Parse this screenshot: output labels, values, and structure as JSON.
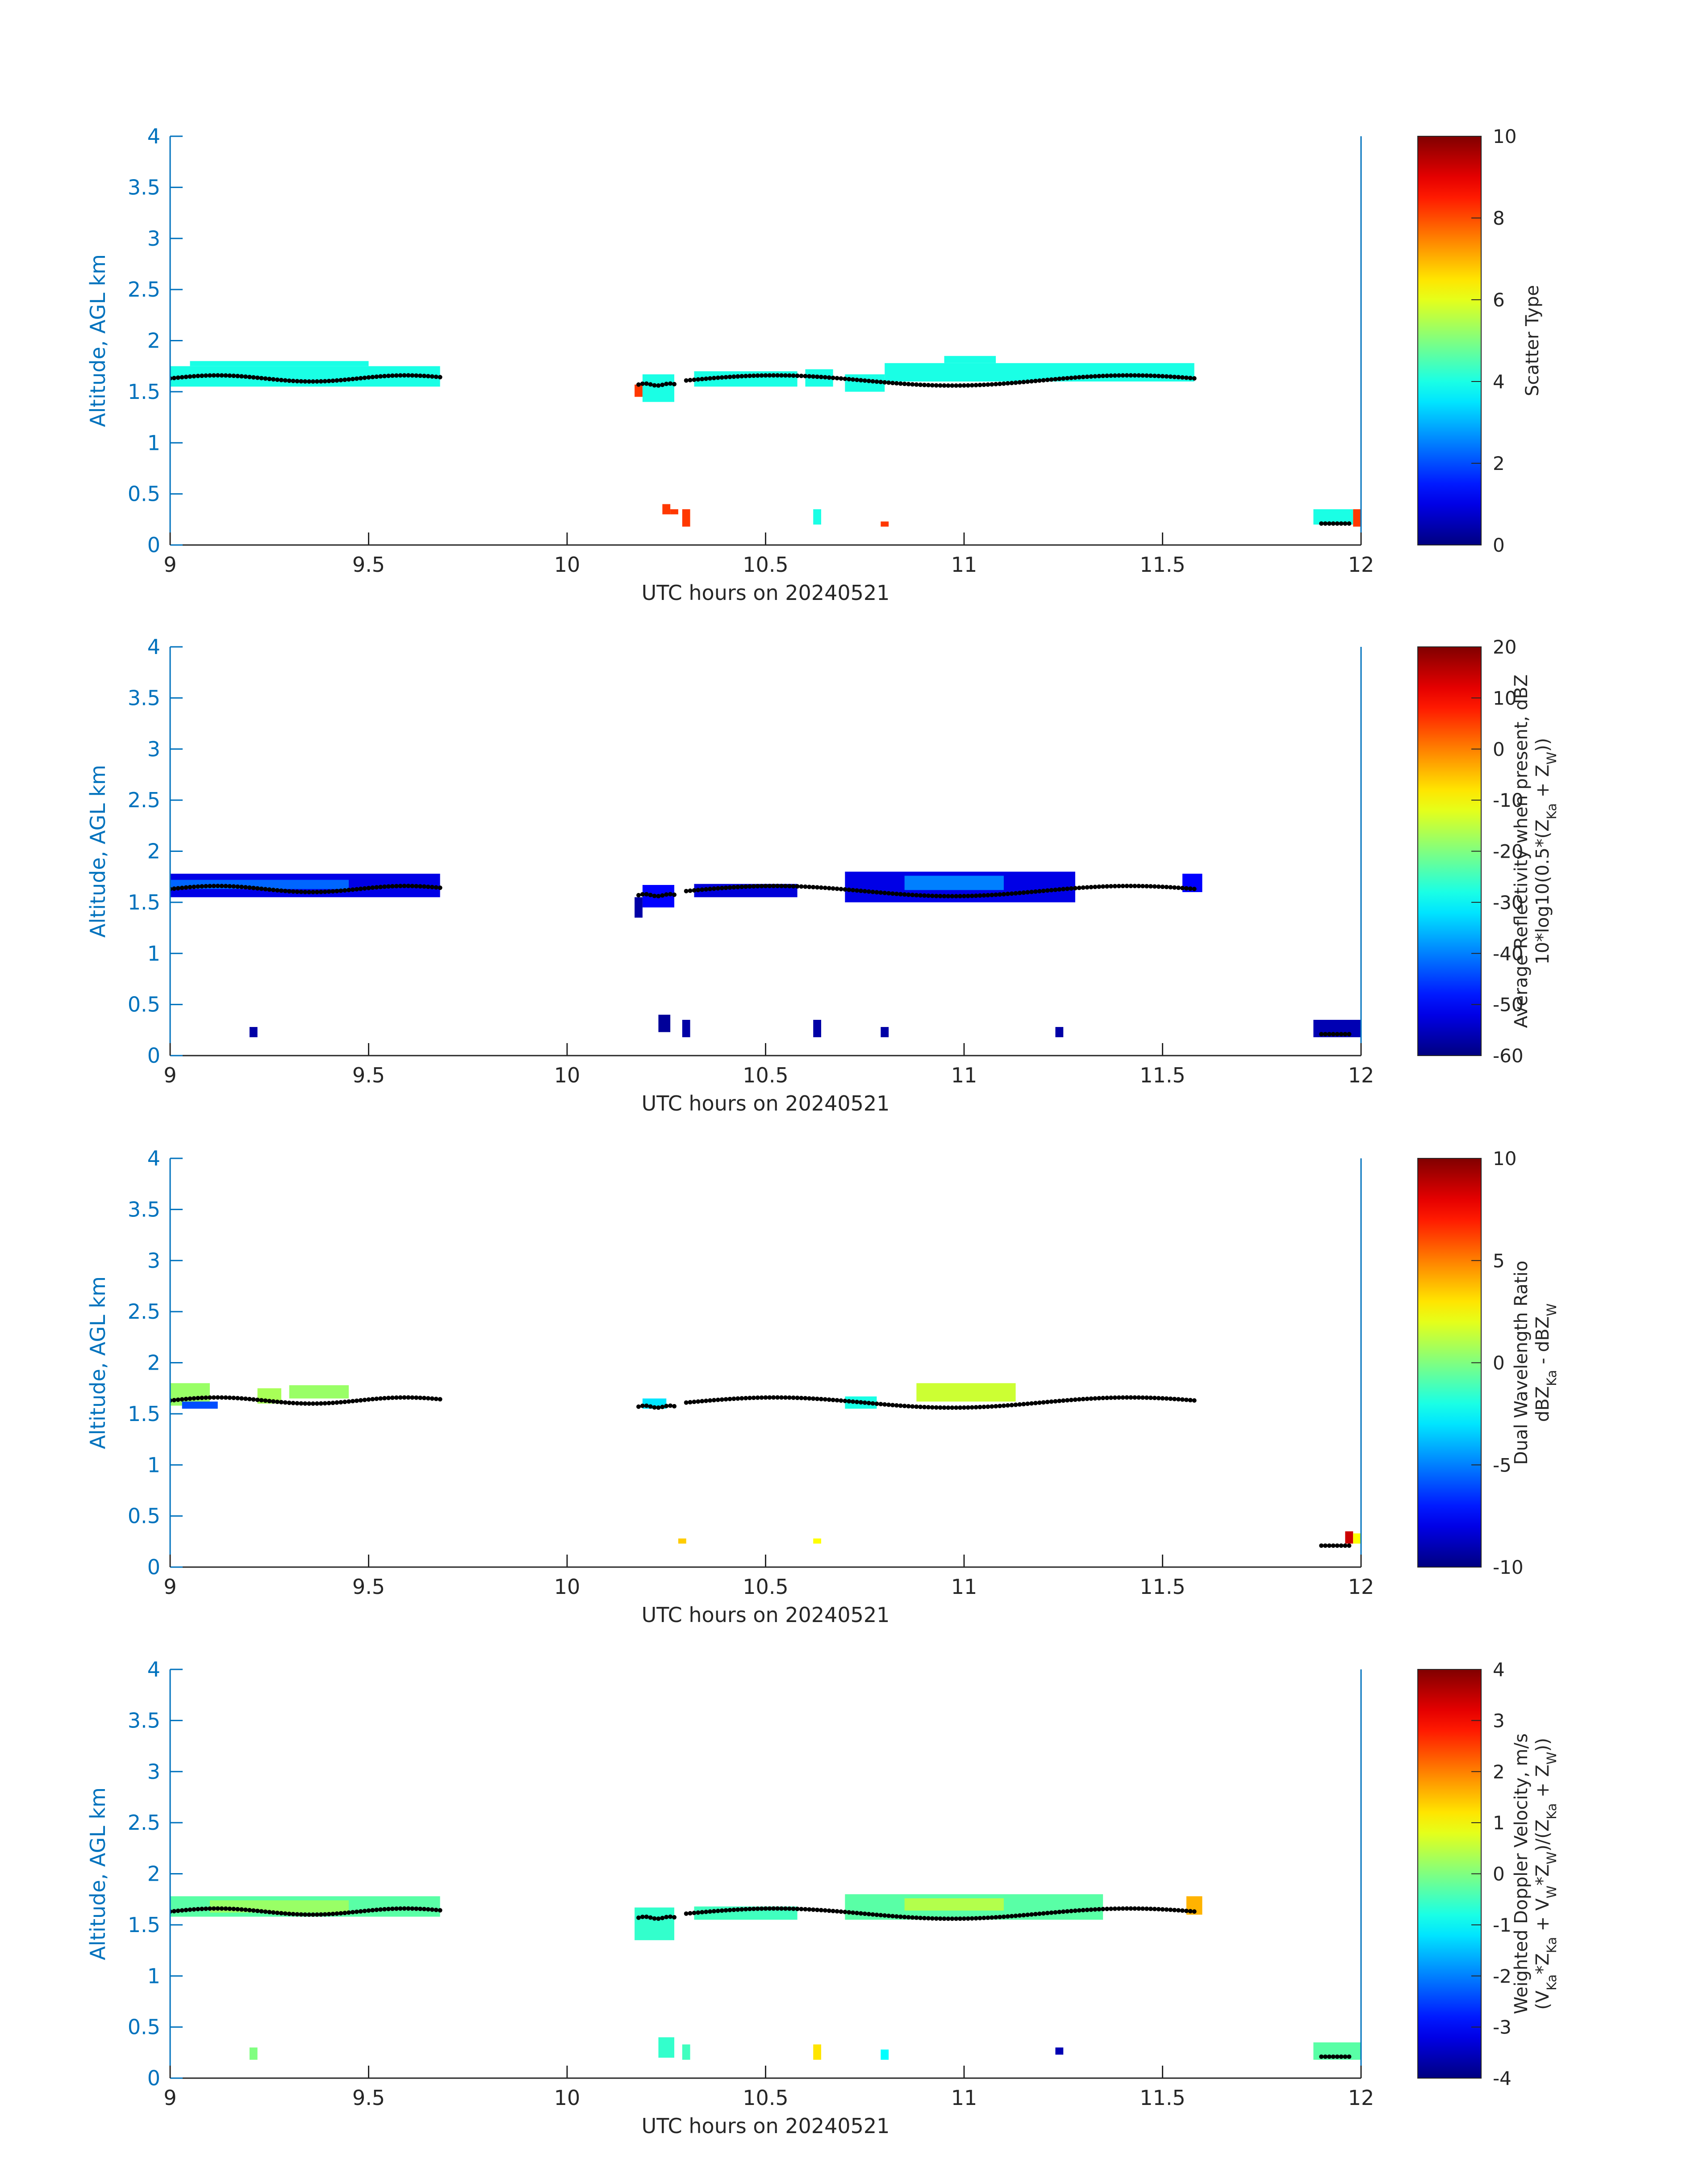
{
  "figure": {
    "panels": [
      {
        "id": "scatter-type",
        "colorbar": {
          "min": 0,
          "max": 10,
          "ticks": [
            0,
            2,
            4,
            6,
            8,
            10
          ],
          "label_lines": [
            "Scatter Type"
          ]
        }
      },
      {
        "id": "reflectivity",
        "colorbar": {
          "min": -60,
          "max": 20,
          "ticks": [
            -60,
            -50,
            -40,
            -30,
            -20,
            -10,
            0,
            10,
            20
          ],
          "label_lines": [
            "Average Reflectivity when present, dBZ",
            "10*log10(0.5*(Z_Ka + Z_W))"
          ]
        }
      },
      {
        "id": "dual-wavelength-ratio",
        "colorbar": {
          "min": -10,
          "max": 10,
          "ticks": [
            -10,
            -5,
            0,
            5,
            10
          ],
          "label_lines": [
            "Dual Wavelength Ratio",
            "dBZ_Ka - dBZ_W"
          ]
        }
      },
      {
        "id": "doppler-velocity",
        "colorbar": {
          "min": -4,
          "max": 4,
          "ticks": [
            -4,
            -3,
            -2,
            -1,
            0,
            1,
            2,
            3,
            4
          ],
          "label_lines": [
            "Weighted Doppler Velocity, m/s",
            "(V_Ka*Z_Ka + V_W*Z_W)/(Z_Ka + Z_W))"
          ]
        }
      }
    ]
  },
  "chart_data": [
    {
      "type": "heatmap",
      "title": "",
      "xlabel": "UTC hours on 20240521",
      "ylabel": "Altitude, AGL km",
      "xlim": [
        9,
        12
      ],
      "ylim": [
        0,
        4
      ],
      "xticks": [
        9,
        9.5,
        10,
        10.5,
        11,
        11.5,
        12
      ],
      "yticks": [
        0,
        0.5,
        1,
        1.5,
        2,
        2.5,
        3,
        3.5,
        4
      ],
      "colormap": "jet",
      "clim": [
        0,
        10
      ],
      "colorbar_label": "Scatter Type",
      "cells": [
        {
          "x0": 9.0,
          "x1": 9.68,
          "y0": 1.55,
          "y1": 1.75,
          "v": 4
        },
        {
          "x0": 9.05,
          "x1": 9.5,
          "y0": 1.75,
          "y1": 1.8,
          "v": 4
        },
        {
          "x0": 10.17,
          "x1": 10.19,
          "y0": 1.45,
          "y1": 1.57,
          "v": 8.2
        },
        {
          "x0": 10.19,
          "x1": 10.27,
          "y0": 1.4,
          "y1": 1.67,
          "v": 4
        },
        {
          "x0": 10.32,
          "x1": 10.58,
          "y0": 1.55,
          "y1": 1.7,
          "v": 4
        },
        {
          "x0": 10.6,
          "x1": 10.67,
          "y0": 1.55,
          "y1": 1.72,
          "v": 4
        },
        {
          "x0": 10.7,
          "x1": 10.8,
          "y0": 1.5,
          "y1": 1.67,
          "v": 4
        },
        {
          "x0": 10.8,
          "x1": 11.58,
          "y0": 1.6,
          "y1": 1.78,
          "v": 4
        },
        {
          "x0": 10.95,
          "x1": 11.08,
          "y0": 1.78,
          "y1": 1.85,
          "v": 4
        },
        {
          "x0": 10.24,
          "x1": 10.26,
          "y0": 0.3,
          "y1": 0.4,
          "v": 8.2
        },
        {
          "x0": 10.26,
          "x1": 10.28,
          "y0": 0.3,
          "y1": 0.35,
          "v": 8.2
        },
        {
          "x0": 10.29,
          "x1": 10.31,
          "y0": 0.18,
          "y1": 0.35,
          "v": 8.2
        },
        {
          "x0": 10.62,
          "x1": 10.64,
          "y0": 0.2,
          "y1": 0.35,
          "v": 4
        },
        {
          "x0": 10.79,
          "x1": 10.81,
          "y0": 0.18,
          "y1": 0.23,
          "v": 8.2
        },
        {
          "x0": 11.88,
          "x1": 11.98,
          "y0": 0.2,
          "y1": 0.35,
          "v": 4
        },
        {
          "x0": 11.98,
          "x1": 12.0,
          "y0": 0.18,
          "y1": 0.35,
          "v": 8.2
        }
      ],
      "cloud_base": [
        {
          "x0": 9.0,
          "x1": 9.68,
          "y0": 1.6,
          "y1": 1.66
        },
        {
          "x0": 10.18,
          "x1": 10.27,
          "y0": 1.56,
          "y1": 1.58
        },
        {
          "x0": 10.3,
          "x1": 11.58,
          "y0": 1.56,
          "y1": 1.66
        },
        {
          "x0": 11.9,
          "x1": 11.97,
          "y0": 0.21,
          "y1": 0.21
        }
      ]
    },
    {
      "type": "heatmap",
      "title": "",
      "xlabel": "UTC hours on 20240521",
      "ylabel": "Altitude, AGL km",
      "xlim": [
        9,
        12
      ],
      "ylim": [
        0,
        4
      ],
      "xticks": [
        9,
        9.5,
        10,
        10.5,
        11,
        11.5,
        12
      ],
      "yticks": [
        0,
        0.5,
        1,
        1.5,
        2,
        2.5,
        3,
        3.5,
        4
      ],
      "colormap": "jet",
      "clim": [
        -60,
        20
      ],
      "colorbar_label": "Average Reflectivity when present, dBZ 10*log10(0.5*(Z_Ka + Z_W))",
      "cells": [
        {
          "x0": 9.0,
          "x1": 9.68,
          "y0": 1.55,
          "y1": 1.78,
          "v": -52
        },
        {
          "x0": 9.0,
          "x1": 9.45,
          "y0": 1.63,
          "y1": 1.72,
          "v": -42
        },
        {
          "x0": 10.17,
          "x1": 10.19,
          "y0": 1.35,
          "y1": 1.55,
          "v": -57
        },
        {
          "x0": 10.19,
          "x1": 10.27,
          "y0": 1.45,
          "y1": 1.67,
          "v": -50
        },
        {
          "x0": 10.32,
          "x1": 10.58,
          "y0": 1.55,
          "y1": 1.68,
          "v": -53
        },
        {
          "x0": 10.7,
          "x1": 11.28,
          "y0": 1.5,
          "y1": 1.8,
          "v": -52
        },
        {
          "x0": 10.85,
          "x1": 11.1,
          "y0": 1.62,
          "y1": 1.76,
          "v": -40
        },
        {
          "x0": 11.55,
          "x1": 11.6,
          "y0": 1.6,
          "y1": 1.78,
          "v": -50
        },
        {
          "x0": 9.2,
          "x1": 9.22,
          "y0": 0.18,
          "y1": 0.28,
          "v": -57
        },
        {
          "x0": 10.23,
          "x1": 10.26,
          "y0": 0.23,
          "y1": 0.4,
          "v": -58
        },
        {
          "x0": 10.29,
          "x1": 10.31,
          "y0": 0.18,
          "y1": 0.35,
          "v": -57
        },
        {
          "x0": 10.62,
          "x1": 10.64,
          "y0": 0.18,
          "y1": 0.35,
          "v": -57
        },
        {
          "x0": 10.79,
          "x1": 10.81,
          "y0": 0.18,
          "y1": 0.28,
          "v": -57
        },
        {
          "x0": 11.23,
          "x1": 11.25,
          "y0": 0.18,
          "y1": 0.28,
          "v": -57
        },
        {
          "x0": 11.88,
          "x1": 12.0,
          "y0": 0.18,
          "y1": 0.35,
          "v": -56
        }
      ],
      "cloud_base": [
        {
          "x0": 9.0,
          "x1": 9.68,
          "y0": 1.6,
          "y1": 1.66
        },
        {
          "x0": 10.18,
          "x1": 10.27,
          "y0": 1.56,
          "y1": 1.58
        },
        {
          "x0": 10.3,
          "x1": 11.58,
          "y0": 1.56,
          "y1": 1.66
        },
        {
          "x0": 11.9,
          "x1": 11.97,
          "y0": 0.21,
          "y1": 0.21
        }
      ]
    },
    {
      "type": "heatmap",
      "title": "",
      "xlabel": "UTC hours on 20240521",
      "ylabel": "Altitude, AGL km",
      "xlim": [
        9,
        12
      ],
      "ylim": [
        0,
        4
      ],
      "xticks": [
        9,
        9.5,
        10,
        10.5,
        11,
        11.5,
        12
      ],
      "yticks": [
        0,
        0.5,
        1,
        1.5,
        2,
        2.5,
        3,
        3.5,
        4
      ],
      "colormap": "jet",
      "clim": [
        -10,
        10
      ],
      "colorbar_label": "Dual Wavelength Ratio dBZ_Ka - dBZ_W",
      "cells": [
        {
          "x0": 9.0,
          "x1": 9.1,
          "y0": 1.58,
          "y1": 1.8,
          "v": 0.5
        },
        {
          "x0": 9.03,
          "x1": 9.12,
          "y0": 1.55,
          "y1": 1.62,
          "v": -6
        },
        {
          "x0": 9.22,
          "x1": 9.28,
          "y0": 1.6,
          "y1": 1.75,
          "v": 0.8
        },
        {
          "x0": 9.3,
          "x1": 9.45,
          "y0": 1.65,
          "y1": 1.78,
          "v": 0.5
        },
        {
          "x0": 10.19,
          "x1": 10.25,
          "y0": 1.55,
          "y1": 1.65,
          "v": -3
        },
        {
          "x0": 10.7,
          "x1": 10.78,
          "y0": 1.55,
          "y1": 1.67,
          "v": -2
        },
        {
          "x0": 10.88,
          "x1": 11.13,
          "y0": 1.62,
          "y1": 1.8,
          "v": 1.5
        },
        {
          "x0": 10.28,
          "x1": 10.3,
          "y0": 0.23,
          "y1": 0.28,
          "v": 3.5
        },
        {
          "x0": 10.62,
          "x1": 10.64,
          "y0": 0.23,
          "y1": 0.28,
          "v": 2.5
        },
        {
          "x0": 11.96,
          "x1": 11.98,
          "y0": 0.23,
          "y1": 0.35,
          "v": 8.5
        },
        {
          "x0": 11.98,
          "x1": 12.0,
          "y0": 0.23,
          "y1": 0.33,
          "v": 2.5
        }
      ],
      "cloud_base": [
        {
          "x0": 9.0,
          "x1": 9.68,
          "y0": 1.6,
          "y1": 1.66
        },
        {
          "x0": 10.18,
          "x1": 10.27,
          "y0": 1.56,
          "y1": 1.58
        },
        {
          "x0": 10.3,
          "x1": 11.58,
          "y0": 1.56,
          "y1": 1.66
        },
        {
          "x0": 11.9,
          "x1": 11.97,
          "y0": 0.21,
          "y1": 0.21
        }
      ]
    },
    {
      "type": "heatmap",
      "title": "",
      "xlabel": "UTC hours on 20240521",
      "ylabel": "Altitude, AGL km",
      "xlim": [
        9,
        12
      ],
      "ylim": [
        0,
        4
      ],
      "xticks": [
        9,
        9.5,
        10,
        10.5,
        11,
        11.5,
        12
      ],
      "yticks": [
        0,
        0.5,
        1,
        1.5,
        2,
        2.5,
        3,
        3.5,
        4
      ],
      "colormap": "jet",
      "clim": [
        -4,
        4
      ],
      "colorbar_label": "Weighted Doppler Velocity, m/s (V_Ka*Z_Ka + V_W*Z_W)/(Z_Ka + Z_W))",
      "cells": [
        {
          "x0": 9.0,
          "x1": 9.68,
          "y0": 1.58,
          "y1": 1.78,
          "v": -0.3
        },
        {
          "x0": 9.1,
          "x1": 9.45,
          "y0": 1.62,
          "y1": 1.74,
          "v": 0.2
        },
        {
          "x0": 10.17,
          "x1": 10.27,
          "y0": 1.35,
          "y1": 1.67,
          "v": -0.6
        },
        {
          "x0": 10.32,
          "x1": 10.58,
          "y0": 1.55,
          "y1": 1.68,
          "v": -0.5
        },
        {
          "x0": 10.7,
          "x1": 11.35,
          "y0": 1.55,
          "y1": 1.8,
          "v": -0.3
        },
        {
          "x0": 10.85,
          "x1": 11.1,
          "y0": 1.64,
          "y1": 1.76,
          "v": 0.4
        },
        {
          "x0": 11.56,
          "x1": 11.6,
          "y0": 1.6,
          "y1": 1.78,
          "v": 1.6
        },
        {
          "x0": 9.2,
          "x1": 9.22,
          "y0": 0.18,
          "y1": 0.3,
          "v": 0
        },
        {
          "x0": 10.23,
          "x1": 10.27,
          "y0": 0.2,
          "y1": 0.4,
          "v": -0.6
        },
        {
          "x0": 10.29,
          "x1": 10.31,
          "y0": 0.18,
          "y1": 0.33,
          "v": -0.5
        },
        {
          "x0": 10.62,
          "x1": 10.64,
          "y0": 0.18,
          "y1": 0.33,
          "v": 1.2
        },
        {
          "x0": 10.79,
          "x1": 10.81,
          "y0": 0.18,
          "y1": 0.28,
          "v": -1
        },
        {
          "x0": 11.23,
          "x1": 11.25,
          "y0": 0.23,
          "y1": 0.3,
          "v": -3.6
        },
        {
          "x0": 11.88,
          "x1": 12.0,
          "y0": 0.18,
          "y1": 0.35,
          "v": -0.3
        }
      ],
      "cloud_base": [
        {
          "x0": 9.0,
          "x1": 9.68,
          "y0": 1.6,
          "y1": 1.66
        },
        {
          "x0": 10.18,
          "x1": 10.27,
          "y0": 1.56,
          "y1": 1.58
        },
        {
          "x0": 10.3,
          "x1": 11.58,
          "y0": 1.56,
          "y1": 1.66
        },
        {
          "x0": 11.9,
          "x1": 11.97,
          "y0": 0.21,
          "y1": 0.21
        }
      ]
    }
  ]
}
